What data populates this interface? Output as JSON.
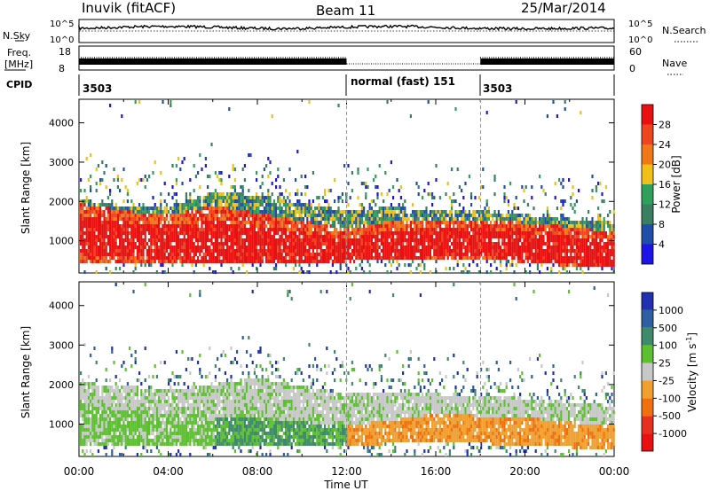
{
  "header": {
    "station": "Inuvik (fitACF)",
    "beam": "Beam 11",
    "date": "25/Mar/2014"
  },
  "top_panels": {
    "nsky_label": "N.Sky",
    "nsky_ticks": [
      "10^5",
      "10^0"
    ],
    "nsearch_label": "N.Search",
    "nsearch_ticks": [
      "10^5",
      "10^0"
    ],
    "freq_label": "Freq.",
    "freq_unit": "[MHz]",
    "freq_ticks": [
      "18",
      "8"
    ],
    "nave_label": "Nave",
    "nave_ticks": [
      "60",
      "0"
    ],
    "cpid_label": "CPID",
    "cpid_segments": [
      {
        "start_hour": 0,
        "label": "3503"
      },
      {
        "start_hour": 12,
        "label": "normal (fast) 151"
      },
      {
        "start_hour": 18,
        "label": "3503"
      }
    ]
  },
  "x_axis": {
    "label": "Time UT",
    "ticks": [
      "00:00",
      "04:00",
      "08:00",
      "12:00",
      "16:00",
      "20:00",
      "00:00"
    ],
    "range_hours": [
      0,
      24
    ]
  },
  "y_axis": {
    "label": "Slant Range [km]",
    "ticks": [
      "1000",
      "2000",
      "3000",
      "4000"
    ],
    "range_km": [
      180,
      4600
    ]
  },
  "colorbars": {
    "power": {
      "label": "Power [dB]",
      "ticks": [
        "4",
        "8",
        "12",
        "16",
        "20",
        "24",
        "28"
      ],
      "colors": [
        "#1e14e6",
        "#1f4fa8",
        "#3a7f62",
        "#2fa05b",
        "#f0c018",
        "#f07818",
        "#ee4420",
        "#e81010"
      ]
    },
    "velocity": {
      "label": "Velocity [m s",
      "label_sup": "-1",
      "label_end": "]",
      "ticks": [
        "1000",
        "500",
        "100",
        "25",
        "-25",
        "-100",
        "-500",
        "-1000"
      ],
      "colors": [
        "#2030b0",
        "#2e5fa0",
        "#3e8a6a",
        "#5cc030",
        "#c8c8c8",
        "#f0a030",
        "#f07010",
        "#e83020",
        "#e81010"
      ]
    }
  },
  "chart_data": {
    "type": "heatmap",
    "title": "Inuvik (fitACF) Beam 11 25/Mar/2014",
    "xlabel": "Time UT",
    "ylabel": "Slant Range [km]",
    "xlim_hours": [
      0,
      24
    ],
    "ylim_km": [
      180,
      4600
    ],
    "panels": [
      {
        "name": "Power",
        "units": "dB",
        "scale": [
          0,
          30
        ],
        "bands_km_by_hour": [
          {
            "hour": 0,
            "low": 500,
            "high": 2100,
            "core": 1200
          },
          {
            "hour": 2,
            "low": 500,
            "high": 1900,
            "core": 1100
          },
          {
            "hour": 4,
            "low": 500,
            "high": 1900,
            "core": 1000
          },
          {
            "hour": 6,
            "low": 450,
            "high": 2300,
            "core": 1000
          },
          {
            "hour": 8,
            "low": 500,
            "high": 2200,
            "core": 900
          },
          {
            "hour": 10,
            "low": 500,
            "high": 2000,
            "core": 800
          },
          {
            "hour": 12,
            "low": 500,
            "high": 1800,
            "core": 700
          },
          {
            "hour": 14,
            "low": 600,
            "high": 1900,
            "core": 900
          },
          {
            "hour": 16,
            "low": 600,
            "high": 1800,
            "core": 1000
          },
          {
            "hour": 18,
            "low": 600,
            "high": 1800,
            "core": 1000
          },
          {
            "hour": 20,
            "low": 500,
            "high": 1700,
            "core": 900
          },
          {
            "hour": 22,
            "low": 400,
            "high": 1600,
            "core": 800
          },
          {
            "hour": 24,
            "low": 400,
            "high": 1500,
            "core": 700
          }
        ]
      },
      {
        "name": "Velocity",
        "units": "m s^-1",
        "scale": [
          -1000,
          1000
        ],
        "bands_km_by_hour": [
          {
            "hour": 0,
            "low": 500,
            "high": 2100,
            "core": 1200
          },
          {
            "hour": 4,
            "low": 500,
            "high": 1900,
            "core": 1000
          },
          {
            "hour": 8,
            "low": 500,
            "high": 2200,
            "core": 900
          },
          {
            "hour": 12,
            "low": 500,
            "high": 1800,
            "core": 700
          },
          {
            "hour": 16,
            "low": 600,
            "high": 1800,
            "core": 1000
          },
          {
            "hour": 20,
            "low": 500,
            "high": 1700,
            "core": 900
          },
          {
            "hour": 24,
            "low": 400,
            "high": 1500,
            "core": 700
          }
        ]
      }
    ]
  }
}
